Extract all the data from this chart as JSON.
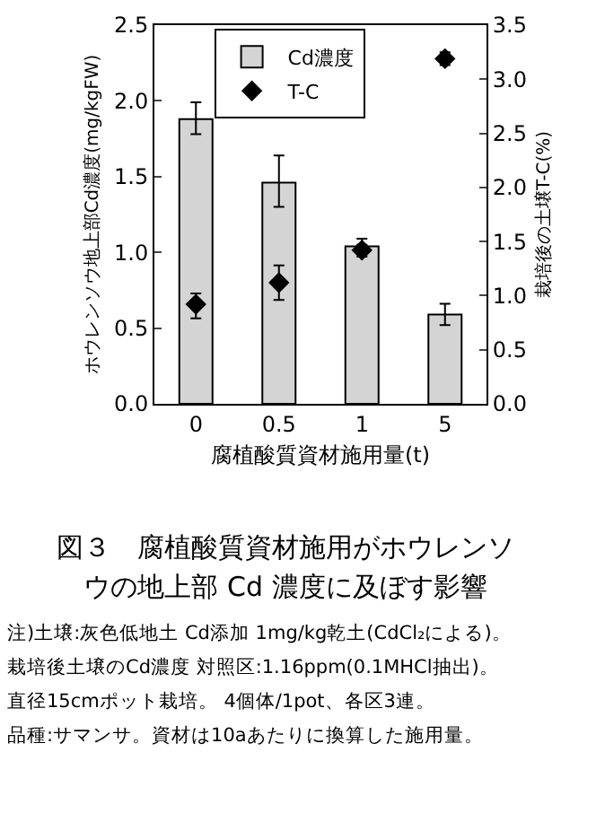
{
  "chart_data": {
    "type": "bar",
    "title": "図３　腐植酸質資材施用がホウレンソウの地上部 Cd 濃度に及ぼす影響",
    "xlabel": "腐植酸質資材施用量(t)",
    "ylabel": "ホウレンソウ地上部Cd濃度(mg/kgFW)",
    "y2label": "栽培後の土壌T-C(%)",
    "categories": [
      "0",
      "0.5",
      "1",
      "5"
    ],
    "series": [
      {
        "name": "Cd濃度",
        "color": "#d4d4d4",
        "values": [
          1.88,
          1.46,
          1.04,
          0.59
        ],
        "errors": [
          [
            1.78,
            1.99
          ],
          [
            1.3,
            1.64
          ],
          [
            0.99,
            1.09
          ],
          [
            0.52,
            0.66
          ]
        ]
      },
      {
        "name": "T-C",
        "type": "scatter",
        "axis": "y2",
        "marker": "diamond",
        "color": "#000000",
        "values": [
          0.92,
          1.12,
          1.42,
          3.19
        ],
        "errors": [
          [
            0.79,
            1.02
          ],
          [
            0.96,
            1.28
          ],
          [
            1.36,
            1.47
          ],
          [
            3.13,
            3.25
          ]
        ]
      }
    ],
    "ylim": [
      0,
      2.5
    ],
    "yticks": [
      {
        "value": 0,
        "label": "0.0"
      },
      {
        "value": 0.5,
        "label": "0.5"
      },
      {
        "value": 1,
        "label": "1.0"
      },
      {
        "value": 1.5,
        "label": "1.5"
      },
      {
        "value": 2,
        "label": "2.0"
      },
      {
        "value": 2.5,
        "label": "2.5"
      }
    ],
    "y2lim": [
      0,
      3.5
    ],
    "y2ticks": [
      {
        "value": 0,
        "label": "0.0"
      },
      {
        "value": 0.5,
        "label": "0.5"
      },
      {
        "value": 1,
        "label": "1.0"
      },
      {
        "value": 1.5,
        "label": "1.5"
      },
      {
        "value": 2,
        "label": "2.0"
      },
      {
        "value": 2.5,
        "label": "2.5"
      },
      {
        "value": 3,
        "label": "3.0"
      },
      {
        "value": 3.5,
        "label": "3.5"
      }
    ],
    "legend": "top left",
    "grid": false,
    "annotations": [
      "注)土壌:灰色低地土 Cd添加 1mg/kg乾土(CdCl₂による)。",
      "栽培後土壌のCd濃度 対照区:1.16ppm(0.1MHCl抽出)。",
      "直径15cmポット栽培。 4個体/1pot、各区3連。",
      "品種:サマンサ。資材は10aあたりに換算した施用量。"
    ]
  }
}
